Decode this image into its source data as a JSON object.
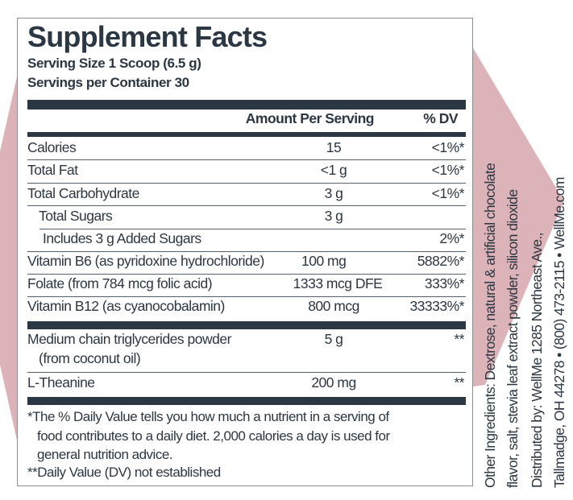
{
  "colors": {
    "ink": "#2b3742",
    "accent_shape": "#dcb3b8"
  },
  "label": {
    "title": "Supplement Facts",
    "serving_size": "Serving Size 1 Scoop (6.5 g)",
    "servings_per_container": "Servings per Container 30",
    "header": {
      "amount": "Amount Per Serving",
      "dv": "% DV"
    },
    "rows": [
      {
        "name": "Calories",
        "amount": "15",
        "dv": "<1%*"
      },
      {
        "name": "Total Fat",
        "amount": "<1 g",
        "dv": "<1%*"
      },
      {
        "name": "Total Carbohydrate",
        "amount": "3 g",
        "dv": "<1%*"
      },
      {
        "name": "Total Sugars",
        "amount": "3 g",
        "dv": ""
      },
      {
        "name": "Includes 3 g Added Sugars",
        "amount": "",
        "dv": "2%*"
      },
      {
        "name": "Vitamin B6 (as pyridoxine hydrochloride)",
        "amount": "100 mg",
        "dv": "5882%*"
      },
      {
        "name": "Folate (from 784 mcg folic acid)",
        "amount": "1333 mcg DFE",
        "dv": "333%*"
      },
      {
        "name": "Vitamin B12 (as cyanocobalamin)",
        "amount": "800 mcg",
        "dv": "33333%*"
      }
    ],
    "other_rows": [
      {
        "name": "Medium chain triglycerides powder",
        "name2": "(from coconut oil)",
        "amount": "5 g",
        "dv": "**"
      },
      {
        "name": "L-Theanine",
        "amount": "200 mg",
        "dv": "**"
      }
    ],
    "footnotes": [
      "*The % Daily Value tells you how much a nutrient in a serving of",
      "food contributes to a daily diet. 2,000 calories a day is used for",
      "general nutrition advice.",
      "**Daily Value (DV) not established"
    ]
  },
  "side_text": {
    "ingredients_1": "Other Ingredients: Dextrose, natural & artificial chocolate",
    "ingredients_2": "flavor, salt, stevia leaf extract powder, silicon dioxide",
    "distributor_1": "Distributed by: WellMe 1285 Northeast Ave.,",
    "distributor_2": "Tallmadge, OH 44278 • (800) 473-2115 • WellMe.com"
  }
}
